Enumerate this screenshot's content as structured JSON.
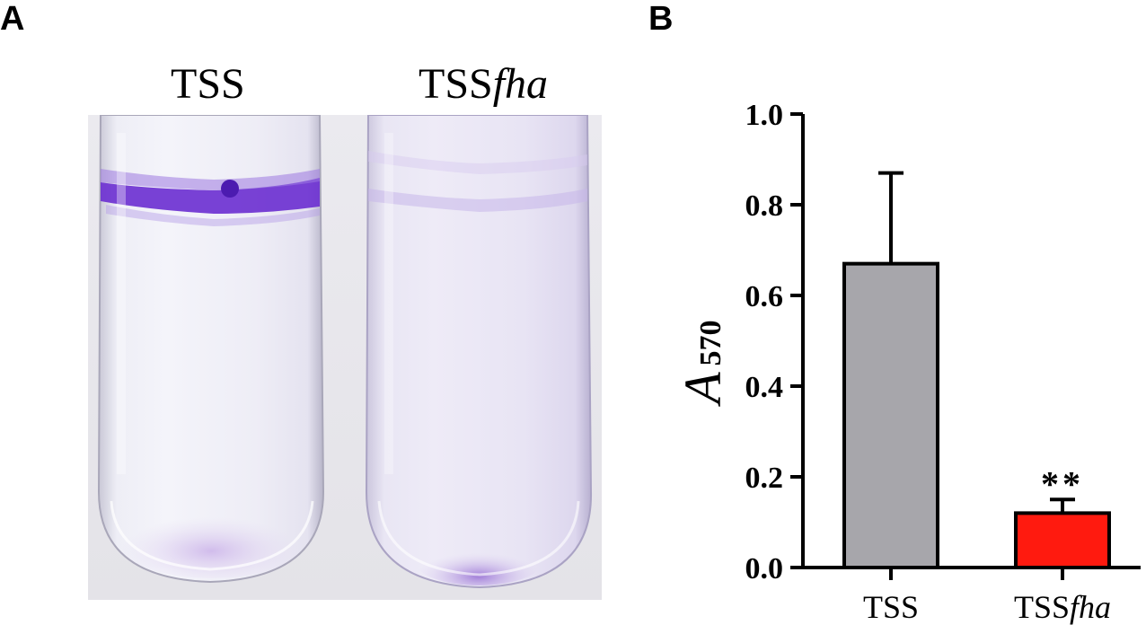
{
  "panel_a": {
    "letter": "A",
    "tubes": [
      {
        "label": "TSS",
        "label_italic": "",
        "stain": "strong purple ring"
      },
      {
        "label": "TSS",
        "label_italic": "fha",
        "stain": "faint"
      }
    ],
    "colors": {
      "background": "#e8e7ec",
      "stain_strong": "#6a2ed0",
      "stain_faint": "#c7b6ea"
    }
  },
  "chart_data": {
    "letter": "B",
    "type": "bar",
    "categories": [
      {
        "prefix": "TSS",
        "italic": ""
      },
      {
        "prefix": "TSS",
        "italic": "fha"
      }
    ],
    "values": [
      0.67,
      0.12
    ],
    "error_upper": [
      0.87,
      0.15
    ],
    "significance": [
      "",
      "**"
    ],
    "colors": [
      "#a7a6ab",
      "#ff1a0f"
    ],
    "ylabel": "A",
    "ylabel_subscript": "570",
    "ylim": [
      0,
      1.0
    ],
    "yticks": [
      "0.0",
      "0.2",
      "0.4",
      "0.6",
      "0.8",
      "1.0"
    ],
    "grid": false
  }
}
